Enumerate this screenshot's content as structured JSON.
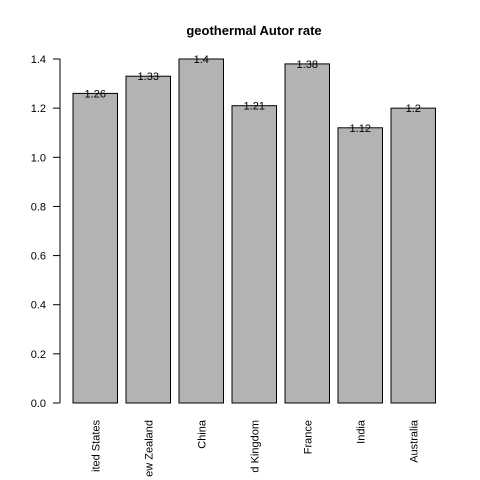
{
  "chart_data": {
    "type": "bar",
    "title": "geothermal Autor rate",
    "xlabel": "",
    "ylabel": "",
    "categories": [
      "United States",
      "New Zealand",
      "China",
      "United Kingdom",
      "France",
      "India",
      "Australia"
    ],
    "category_labels_visible": [
      "ited States",
      "ew Zealand",
      "China",
      "d Kingdom",
      "France",
      "India",
      "Australia"
    ],
    "values": [
      1.26,
      1.33,
      1.4,
      1.21,
      1.38,
      1.12,
      1.2
    ],
    "data_labels": [
      "1.26",
      "1.33",
      "1.4",
      "1.21",
      "1.38",
      "1.12",
      "1.2"
    ],
    "yticks": [
      "0.0",
      "0.2",
      "0.4",
      "0.6",
      "0.8",
      "1.0",
      "1.2",
      "1.4"
    ],
    "ylim": [
      0,
      1.4
    ],
    "grid": false,
    "colors": {
      "bar_fill": "#b3b3b3",
      "bar_stroke": "#000000"
    }
  }
}
